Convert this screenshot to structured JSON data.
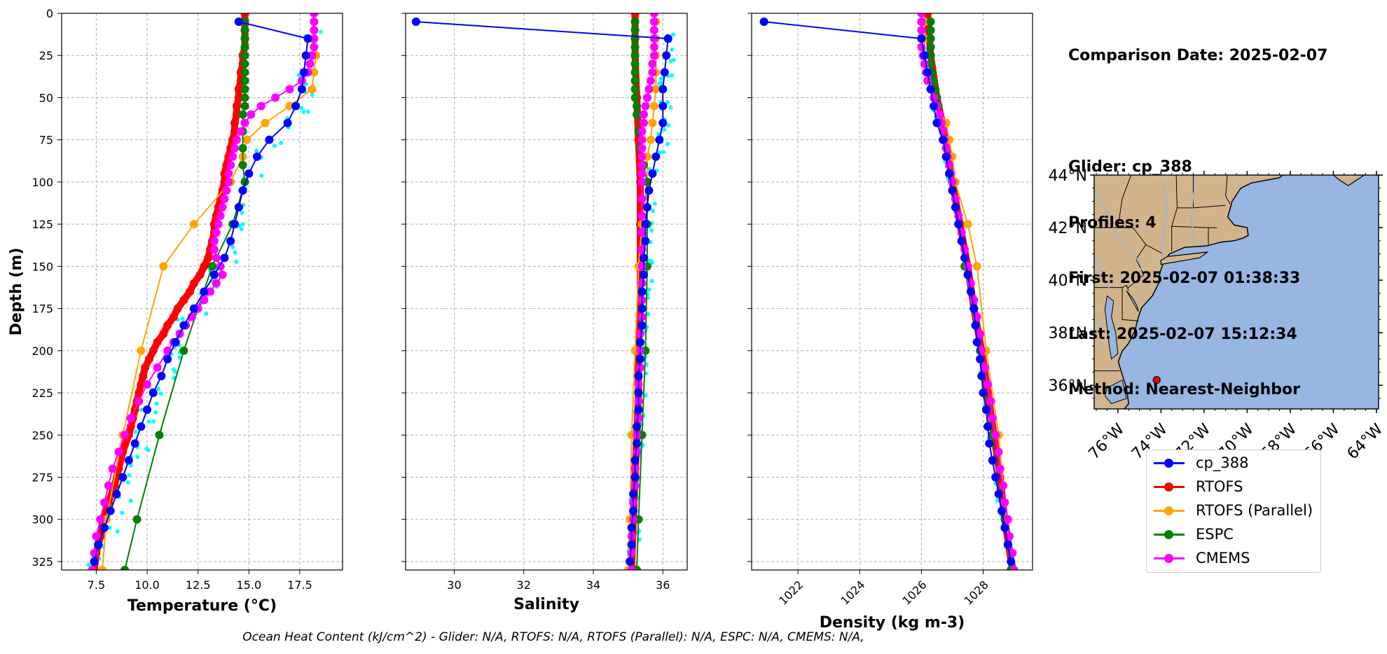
{
  "info": {
    "comparison": "Comparison Date: 2025-02-07",
    "glider": "Glider: cp_388",
    "profiles": "Profiles: 4",
    "first": "First: 2025-02-07 01:38:33",
    "last": "Last: 2025-02-07 15:12:34",
    "method": "Method: Nearest-Neighbor"
  },
  "footer": "Ocean Heat Content (kJ/cm^2) - Glider: N/A,  RTOFS: N/A,  RTOFS (Parallel): N/A,  ESPC: N/A,  CMEMS: N/A,",
  "colors": {
    "cp_388": "#0000ff",
    "RTOFS": "#ff0000",
    "RTOFS (Parallel)": "#ffa500",
    "ESPC": "#008000",
    "CMEMS": "#ff00ff",
    "raw": "#00ffff",
    "land": "#d2b48c",
    "ocean": "#97b6e1"
  },
  "legend": [
    "cp_388",
    "RTOFS",
    "RTOFS (Parallel)",
    "ESPC",
    "CMEMS"
  ],
  "chart_data": [
    {
      "type": "line",
      "xlabel": "Temperature (°C)",
      "ylabel": "Depth (m)",
      "xlim": [
        5.8,
        19.6
      ],
      "ylim": [
        330,
        0
      ],
      "xticks": [
        "7.5",
        "10.0",
        "12.5",
        "15.0",
        "17.5"
      ],
      "yticks": [
        "0",
        "25",
        "50",
        "75",
        "100",
        "125",
        "150",
        "175",
        "200",
        "225",
        "250",
        "275",
        "300",
        "325"
      ],
      "grid": true,
      "series": [
        {
          "name": "cp_388",
          "depth": [
            5,
            15,
            25,
            35,
            45,
            55,
            65,
            75,
            85,
            95,
            105,
            115,
            125,
            135,
            145,
            155,
            165,
            175,
            185,
            195,
            205,
            215,
            225,
            235,
            245,
            255,
            265,
            275,
            285,
            295,
            305,
            315,
            325
          ],
          "values": [
            14.5,
            17.9,
            17.8,
            17.7,
            17.6,
            17.3,
            16.9,
            16.0,
            15.4,
            15.0,
            14.7,
            14.5,
            14.3,
            14.1,
            13.8,
            13.3,
            12.8,
            12.3,
            11.8,
            11.4,
            11.0,
            10.7,
            10.3,
            10.0,
            9.7,
            9.4,
            9.1,
            8.8,
            8.5,
            8.2,
            7.9,
            7.6,
            7.4
          ]
        },
        {
          "name": "RTOFS",
          "depth": [
            0,
            5,
            10,
            15,
            20,
            25,
            30,
            35,
            40,
            45,
            50,
            55,
            60,
            65,
            70,
            75,
            80,
            85,
            90,
            95,
            100,
            105,
            110,
            115,
            120,
            125,
            130,
            135,
            140,
            145,
            150,
            155,
            160,
            165,
            170,
            175,
            180,
            185,
            190,
            195,
            200,
            205,
            210,
            215,
            220,
            225,
            230,
            235,
            240,
            245,
            250,
            260,
            270,
            280,
            290,
            300,
            310,
            320,
            330
          ],
          "values": [
            14.8,
            14.8,
            14.8,
            14.8,
            14.8,
            14.7,
            14.7,
            14.6,
            14.6,
            14.5,
            14.5,
            14.4,
            14.4,
            14.3,
            14.3,
            14.2,
            14.1,
            14.0,
            13.9,
            13.8,
            13.8,
            13.7,
            13.6,
            13.5,
            13.4,
            13.3,
            13.3,
            13.2,
            13.1,
            13.0,
            12.8,
            12.6,
            12.3,
            12.1,
            11.8,
            11.5,
            11.3,
            11.0,
            10.8,
            10.5,
            10.3,
            10.1,
            9.9,
            9.8,
            9.7,
            9.6,
            9.5,
            9.4,
            9.3,
            9.2,
            9.1,
            8.8,
            8.6,
            8.4,
            8.1,
            7.9,
            7.7,
            7.5,
            7.4
          ]
        },
        {
          "name": "RTOFS (Parallel)",
          "depth": [
            5,
            15,
            25,
            35,
            45,
            55,
            65,
            75,
            85,
            100,
            125,
            150,
            200,
            250,
            300,
            330
          ],
          "values": [
            18.2,
            18.2,
            18.3,
            18.2,
            18.1,
            17.0,
            15.8,
            14.9,
            14.7,
            14.1,
            12.3,
            10.8,
            9.7,
            8.8,
            8.0,
            7.8
          ]
        },
        {
          "name": "ESPC",
          "depth": [
            5,
            10,
            15,
            20,
            25,
            30,
            35,
            40,
            45,
            50,
            55,
            60,
            70,
            80,
            90,
            100,
            125,
            150,
            200,
            250,
            300,
            330
          ],
          "values": [
            14.8,
            14.8,
            14.8,
            14.8,
            14.8,
            14.8,
            14.8,
            14.8,
            14.8,
            14.8,
            14.8,
            14.7,
            14.7,
            14.7,
            14.7,
            14.8,
            14.2,
            13.2,
            11.8,
            10.6,
            9.5,
            8.9
          ]
        },
        {
          "name": "CMEMS",
          "depth": [
            0,
            5,
            10,
            15,
            20,
            25,
            30,
            35,
            40,
            45,
            50,
            55,
            60,
            65,
            70,
            75,
            80,
            85,
            90,
            95,
            100,
            105,
            110,
            115,
            120,
            125,
            130,
            135,
            140,
            145,
            150,
            155,
            160,
            165,
            170,
            175,
            180,
            185,
            190,
            195,
            200,
            210,
            220,
            230,
            240,
            250,
            260,
            270,
            280,
            290,
            300,
            310,
            320,
            330
          ],
          "values": [
            18.2,
            18.2,
            18.2,
            18.2,
            18.2,
            18.1,
            18.0,
            17.9,
            17.6,
            17.0,
            16.3,
            15.6,
            15.1,
            14.8,
            14.6,
            14.4,
            14.3,
            14.2,
            14.1,
            14.0,
            14.0,
            13.9,
            13.8,
            13.7,
            13.6,
            13.5,
            13.4,
            13.3,
            13.3,
            13.4,
            13.6,
            13.7,
            13.4,
            13.1,
            12.8,
            12.5,
            12.2,
            11.9,
            11.6,
            11.3,
            11.0,
            10.5,
            10.0,
            9.6,
            9.2,
            8.9,
            8.6,
            8.3,
            8.1,
            7.9,
            7.7,
            7.5,
            7.4,
            7.3
          ]
        }
      ]
    },
    {
      "type": "line",
      "xlabel": "Salinity",
      "ylabel": "",
      "xlim": [
        28.6,
        36.7
      ],
      "ylim": [
        330,
        0
      ],
      "xticks": [
        "30",
        "32",
        "34",
        "36"
      ],
      "grid": true,
      "series": [
        {
          "name": "cp_388",
          "depth": [
            5,
            15,
            25,
            35,
            45,
            55,
            65,
            75,
            85,
            95,
            105,
            115,
            125,
            135,
            145,
            155,
            165,
            175,
            185,
            195,
            205,
            215,
            225,
            235,
            245,
            255,
            265,
            275,
            285,
            295,
            305,
            315,
            325
          ],
          "values": [
            28.9,
            36.15,
            36.1,
            36.05,
            36.0,
            36.0,
            36.0,
            35.9,
            35.8,
            35.7,
            35.6,
            35.55,
            35.5,
            35.5,
            35.45,
            35.45,
            35.4,
            35.4,
            35.4,
            35.35,
            35.35,
            35.3,
            35.3,
            35.3,
            35.25,
            35.25,
            35.2,
            35.2,
            35.15,
            35.15,
            35.1,
            35.1,
            35.05
          ]
        },
        {
          "name": "RTOFS",
          "depth": [
            0,
            25,
            50,
            75,
            100,
            125,
            150,
            175,
            200,
            225,
            250,
            275,
            300,
            330
          ],
          "values": [
            35.2,
            35.2,
            35.25,
            35.3,
            35.35,
            35.35,
            35.35,
            35.35,
            35.3,
            35.3,
            35.25,
            35.2,
            35.15,
            35.1
          ]
        },
        {
          "name": "RTOFS (Parallel)",
          "depth": [
            5,
            15,
            25,
            35,
            45,
            55,
            65,
            75,
            85,
            100,
            125,
            150,
            200,
            250,
            300,
            330
          ],
          "values": [
            35.8,
            35.8,
            35.8,
            35.8,
            35.8,
            35.75,
            35.7,
            35.65,
            35.55,
            35.55,
            35.4,
            35.3,
            35.2,
            35.1,
            35.05,
            35.0
          ]
        },
        {
          "name": "ESPC",
          "depth": [
            5,
            10,
            15,
            20,
            25,
            30,
            35,
            40,
            45,
            50,
            55,
            60,
            70,
            80,
            90,
            100,
            125,
            150,
            200,
            250,
            300,
            330
          ],
          "values": [
            35.2,
            35.2,
            35.2,
            35.2,
            35.2,
            35.2,
            35.2,
            35.2,
            35.2,
            35.2,
            35.25,
            35.25,
            35.3,
            35.35,
            35.45,
            35.55,
            35.55,
            35.55,
            35.5,
            35.4,
            35.3,
            35.25
          ]
        },
        {
          "name": "CMEMS",
          "depth": [
            0,
            5,
            10,
            15,
            20,
            25,
            30,
            35,
            40,
            45,
            50,
            55,
            60,
            65,
            70,
            75,
            80,
            85,
            90,
            95,
            100,
            110,
            120,
            130,
            140,
            150,
            160,
            170,
            180,
            190,
            200,
            210,
            220,
            230,
            240,
            250,
            260,
            270,
            280,
            290,
            300,
            310,
            320,
            330
          ],
          "values": [
            35.75,
            35.75,
            35.75,
            35.75,
            35.75,
            35.75,
            35.7,
            35.7,
            35.65,
            35.6,
            35.55,
            35.5,
            35.45,
            35.45,
            35.4,
            35.4,
            35.4,
            35.4,
            35.4,
            35.4,
            35.4,
            35.4,
            35.4,
            35.4,
            35.4,
            35.4,
            35.4,
            35.4,
            35.4,
            35.35,
            35.35,
            35.35,
            35.3,
            35.3,
            35.3,
            35.25,
            35.25,
            35.2,
            35.2,
            35.15,
            35.15,
            35.1,
            35.1,
            35.1
          ]
        }
      ]
    },
    {
      "type": "line",
      "xlabel": "Density (kg m-3)",
      "ylabel": "",
      "xlim": [
        1020.5,
        1029.6
      ],
      "ylim": [
        330,
        0
      ],
      "xticks": [
        "1022",
        "1024",
        "1026",
        "1028"
      ],
      "grid": true,
      "series": [
        {
          "name": "cp_388",
          "depth": [
            5,
            15,
            25,
            35,
            45,
            55,
            65,
            75,
            85,
            95,
            105,
            115,
            125,
            135,
            145,
            155,
            165,
            175,
            185,
            195,
            205,
            215,
            225,
            235,
            245,
            255,
            265,
            275,
            285,
            295,
            305,
            315,
            325
          ],
          "values": [
            1020.9,
            1026.0,
            1026.1,
            1026.2,
            1026.3,
            1026.4,
            1026.5,
            1026.7,
            1026.8,
            1026.9,
            1027.0,
            1027.1,
            1027.2,
            1027.3,
            1027.4,
            1027.5,
            1027.6,
            1027.7,
            1027.75,
            1027.8,
            1027.9,
            1027.95,
            1028.0,
            1028.1,
            1028.15,
            1028.2,
            1028.3,
            1028.4,
            1028.5,
            1028.6,
            1028.7,
            1028.8,
            1028.9
          ]
        },
        {
          "name": "RTOFS",
          "depth": [
            0,
            25,
            50,
            75,
            100,
            125,
            150,
            175,
            200,
            225,
            250,
            275,
            300,
            330
          ],
          "values": [
            1026.2,
            1026.3,
            1026.5,
            1026.8,
            1027.0,
            1027.25,
            1027.5,
            1027.7,
            1027.95,
            1028.15,
            1028.35,
            1028.55,
            1028.7,
            1028.95
          ]
        },
        {
          "name": "RTOFS (Parallel)",
          "depth": [
            5,
            15,
            25,
            35,
            45,
            55,
            65,
            75,
            85,
            100,
            125,
            150,
            200,
            250,
            300,
            330
          ],
          "values": [
            1026.1,
            1026.1,
            1026.1,
            1026.2,
            1026.3,
            1026.5,
            1026.8,
            1026.9,
            1027.0,
            1027.1,
            1027.5,
            1027.8,
            1028.1,
            1028.5,
            1028.75,
            1028.9
          ]
        },
        {
          "name": "ESPC",
          "depth": [
            5,
            10,
            15,
            20,
            25,
            30,
            35,
            40,
            45,
            50,
            55,
            60,
            70,
            80,
            90,
            100,
            125,
            150,
            200,
            250,
            300,
            330
          ],
          "values": [
            1026.3,
            1026.3,
            1026.3,
            1026.3,
            1026.3,
            1026.3,
            1026.35,
            1026.4,
            1026.45,
            1026.5,
            1026.55,
            1026.6,
            1026.7,
            1026.8,
            1026.9,
            1027.0,
            1027.2,
            1027.4,
            1027.9,
            1028.3,
            1028.7,
            1028.9
          ]
        },
        {
          "name": "CMEMS",
          "depth": [
            0,
            5,
            10,
            15,
            20,
            25,
            30,
            35,
            40,
            45,
            50,
            55,
            60,
            65,
            70,
            75,
            80,
            85,
            90,
            95,
            100,
            110,
            120,
            130,
            140,
            150,
            160,
            170,
            180,
            190,
            200,
            210,
            220,
            230,
            240,
            250,
            260,
            270,
            280,
            290,
            300,
            310,
            320,
            330
          ],
          "values": [
            1026.0,
            1026.0,
            1026.0,
            1026.0,
            1026.0,
            1026.05,
            1026.1,
            1026.15,
            1026.2,
            1026.3,
            1026.4,
            1026.5,
            1026.6,
            1026.65,
            1026.7,
            1026.75,
            1026.8,
            1026.85,
            1026.9,
            1026.95,
            1027.0,
            1027.1,
            1027.2,
            1027.3,
            1027.4,
            1027.5,
            1027.6,
            1027.7,
            1027.8,
            1027.9,
            1027.95,
            1028.05,
            1028.15,
            1028.25,
            1028.3,
            1028.4,
            1028.5,
            1028.55,
            1028.65,
            1028.7,
            1028.8,
            1028.85,
            1028.95,
            1029.0
          ]
        }
      ]
    },
    {
      "type": "map",
      "lon_ticks": [
        "76°W",
        "74°W",
        "72°W",
        "70°W",
        "68°W",
        "66°W",
        "64°W"
      ],
      "lat_ticks": [
        "44°N",
        "42°N",
        "40°N",
        "38°N",
        "36°N"
      ],
      "lon_range": [
        -77.1,
        -63.9
      ],
      "lat_range": [
        35.1,
        44.0
      ],
      "glider_position": {
        "lon": -74.2,
        "lat": 36.2
      }
    }
  ]
}
